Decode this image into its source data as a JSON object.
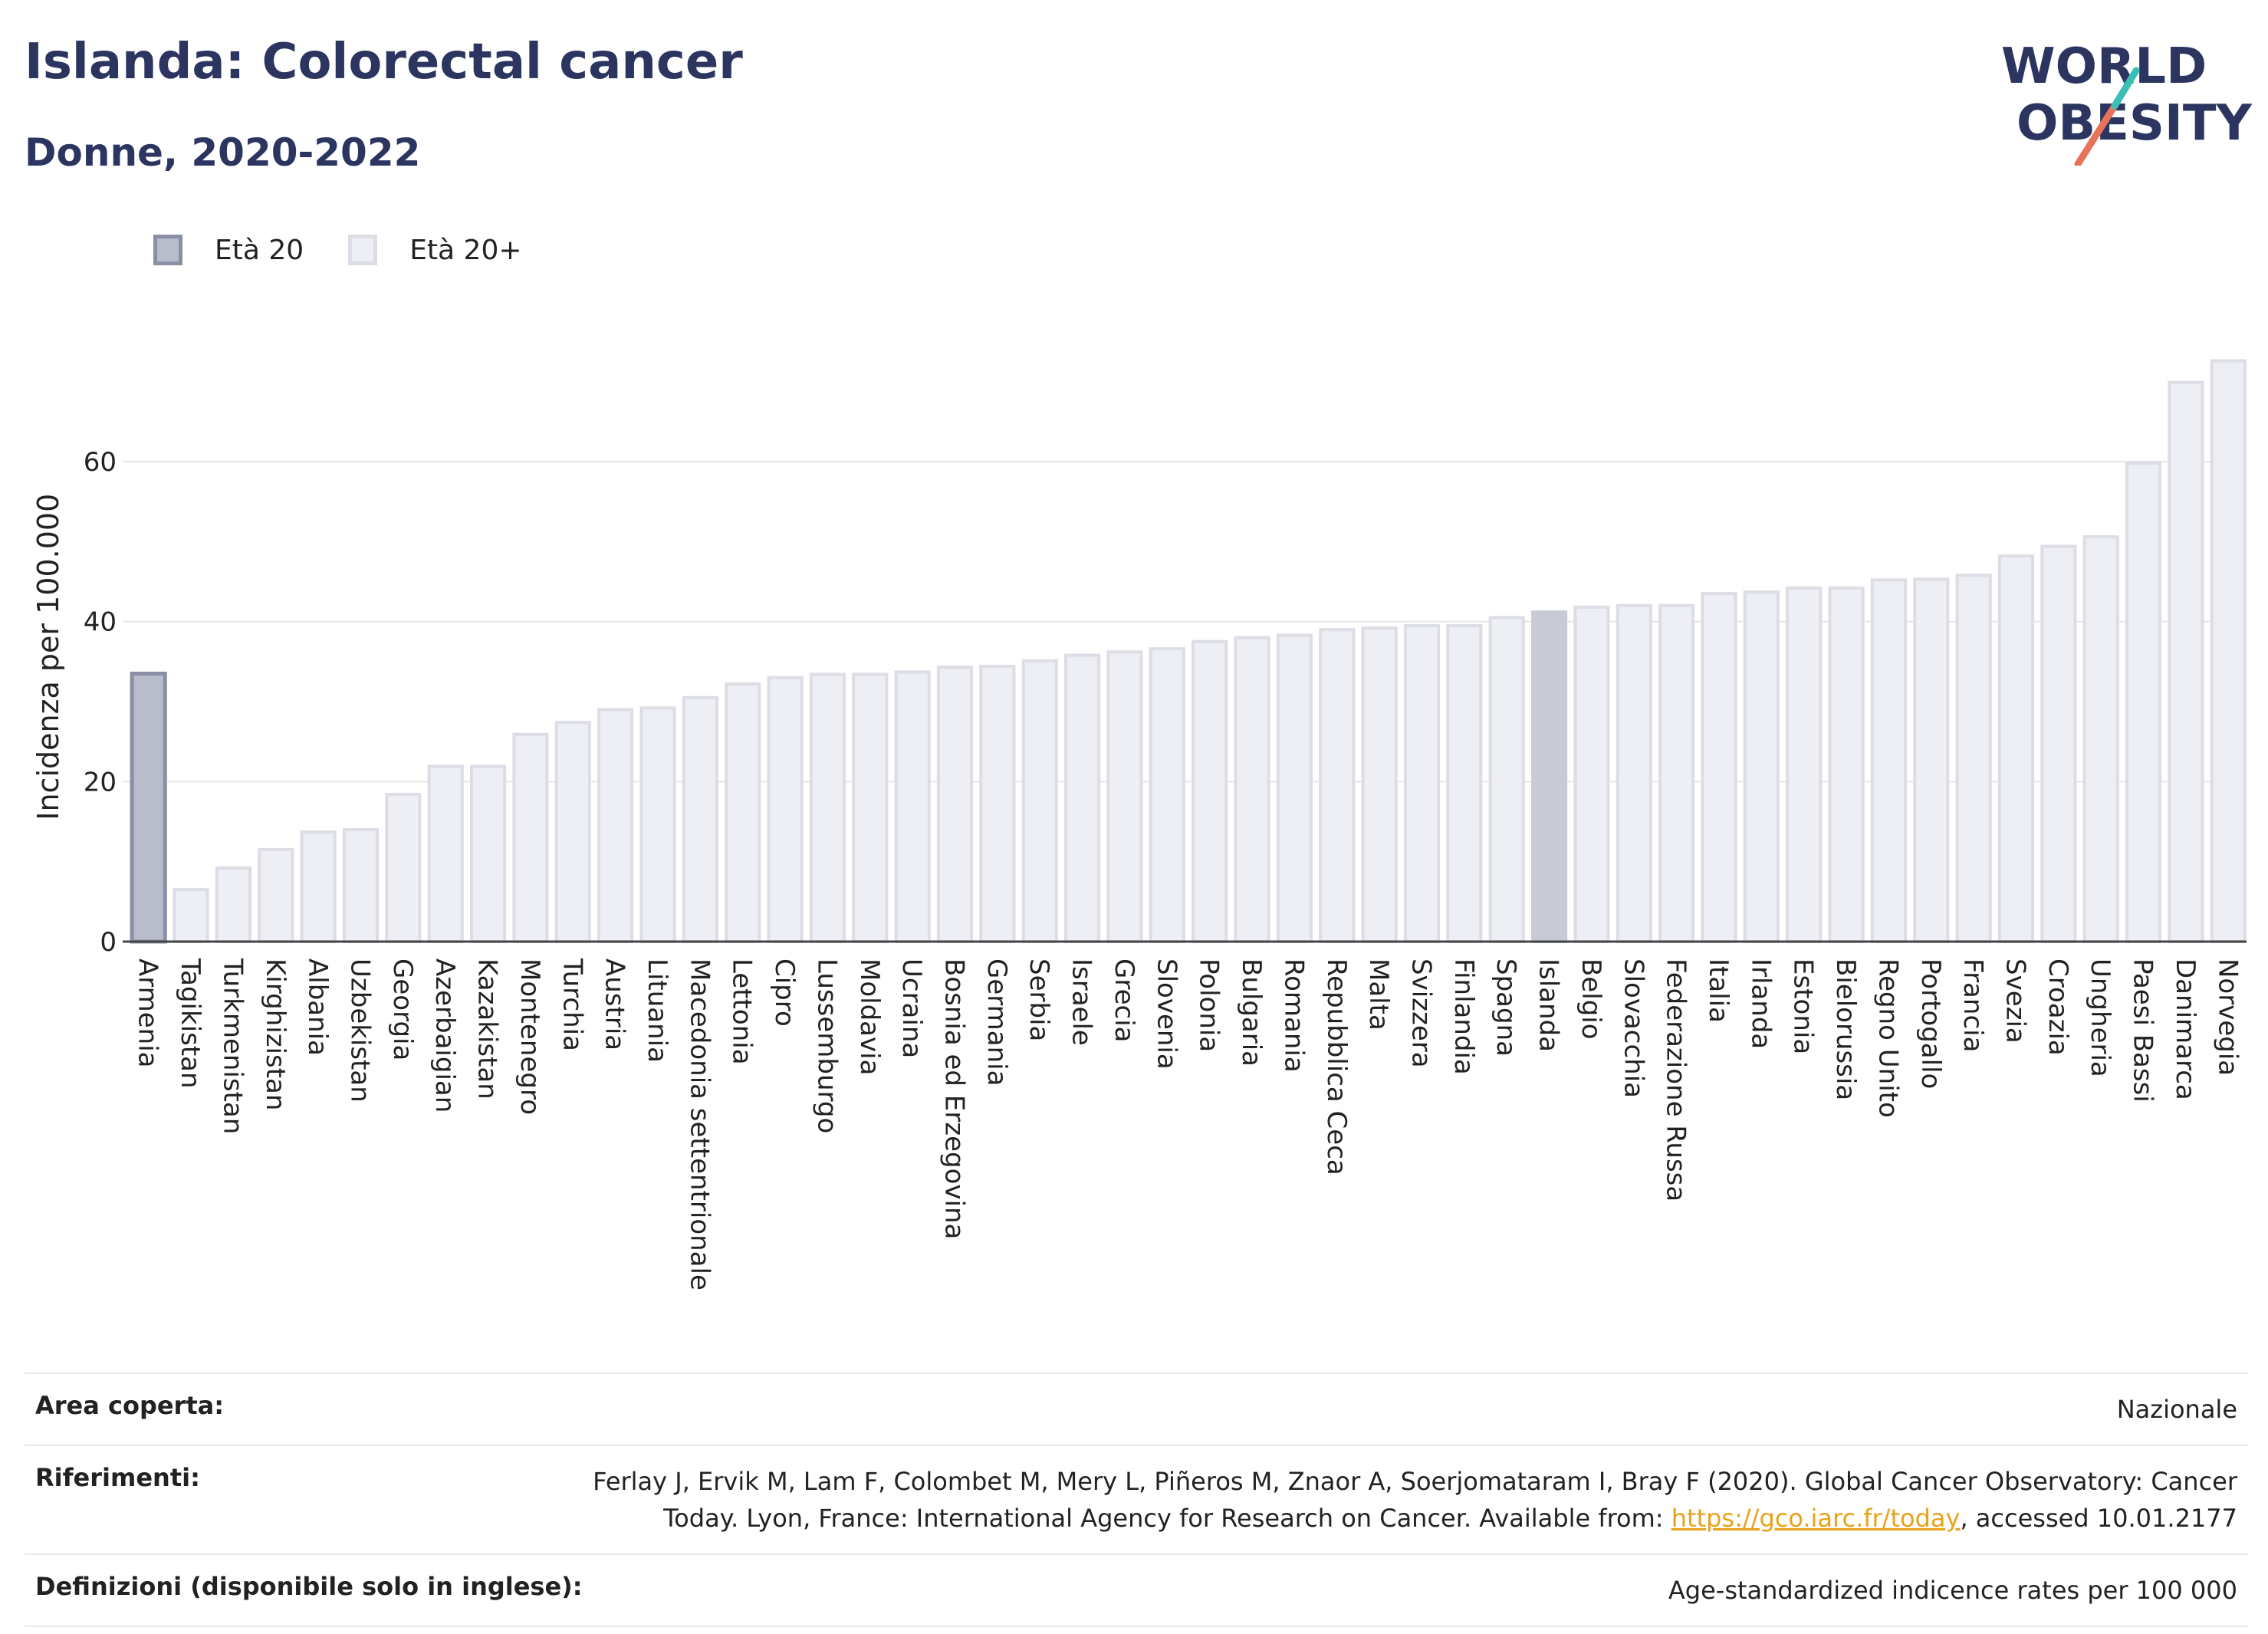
{
  "header": {
    "title": "Islanda: Colorectal cancer",
    "subtitle": "Donne, 2020-2022"
  },
  "logo": {
    "line1": "WORLD",
    "line2": "OBESITY"
  },
  "colors": {
    "title": "#2b3560",
    "highlight_fill": "#c8cad6",
    "first_fill": "#b9bccb",
    "first_stroke": "#8b8fa6",
    "bar_fill": "#eeeff4",
    "bar_stroke": "#dcdde5",
    "grid": "#e6e6e6",
    "link": "#e8a21a",
    "logo_teal": "#3bbfb4",
    "logo_coral": "#e8735a"
  },
  "chart_data": {
    "type": "bar",
    "title": "Islanda: Colorectal cancer",
    "subtitle": "Donne, 2020-2022",
    "ylabel": "Incidenza per 100.000",
    "xlabel": "",
    "ylim": [
      0,
      75
    ],
    "yticks": [
      0,
      20,
      40,
      60
    ],
    "grid": true,
    "legend_position": "top-left",
    "legend": [
      {
        "label": "Età 20",
        "fill": "#b9bccb",
        "stroke": "#8b8fa6"
      },
      {
        "label": "Età 20+",
        "fill": "#eeeff4",
        "stroke": "#dcdde5"
      }
    ],
    "highlight": "Islanda",
    "categories": [
      "Armenia",
      "Tagikistan",
      "Turkmenistan",
      "Kirghizistan",
      "Albania",
      "Uzbekistan",
      "Georgia",
      "Azerbaigian",
      "Kazakistan",
      "Montenegro",
      "Turchia",
      "Austria",
      "Lituania",
      "Macedonia settentrionale",
      "Lettonia",
      "Cipro",
      "Lussemburgo",
      "Moldavia",
      "Ucraina",
      "Bosnia ed Erzegovina",
      "Germania",
      "Serbia",
      "Israele",
      "Grecia",
      "Slovenia",
      "Polonia",
      "Bulgaria",
      "Romania",
      "Repubblica Ceca",
      "Malta",
      "Svizzera",
      "Finlandia",
      "Spagna",
      "Islanda",
      "Belgio",
      "Slovacchia",
      "Federazione Russa",
      "Italia",
      "Irlanda",
      "Estonia",
      "Bielorussia",
      "Regno Unito",
      "Portogallo",
      "Francia",
      "Svezia",
      "Croazia",
      "Ungheria",
      "Paesi Bassi",
      "Danimarca",
      "Norvegia"
    ],
    "values": [
      33.5,
      6.5,
      9.2,
      11.5,
      13.7,
      14.0,
      18.4,
      21.9,
      21.9,
      25.9,
      27.4,
      29.0,
      29.2,
      30.5,
      32.2,
      33.0,
      33.4,
      33.4,
      33.7,
      34.3,
      34.4,
      35.1,
      35.8,
      36.2,
      36.6,
      37.5,
      38.0,
      38.3,
      39.0,
      39.2,
      39.5,
      39.5,
      40.5,
      41.2,
      41.8,
      42.0,
      42.0,
      43.5,
      43.7,
      44.2,
      44.2,
      45.2,
      45.3,
      45.8,
      48.2,
      49.4,
      50.6,
      59.8,
      69.9,
      72.6
    ]
  },
  "footer": {
    "rows": [
      {
        "label": "Area coperta:",
        "value": "Nazionale"
      },
      {
        "label": "Riferimenti:",
        "value_pre": "Ferlay J, Ervik M, Lam F, Colombet M, Mery L, Piñeros M, Znaor A, Soerjomataram I, Bray F (2020). Global Cancer Observatory: Cancer Today. Lyon, France: International Agency for Research on Cancer. Available from: ",
        "link": "https://gco.iarc.fr/today",
        "value_post": ", accessed 10.01.2177"
      },
      {
        "label": "Definizioni (disponibile solo in inglese):",
        "value": "Age-standardized indicence rates per 100 000"
      }
    ]
  }
}
